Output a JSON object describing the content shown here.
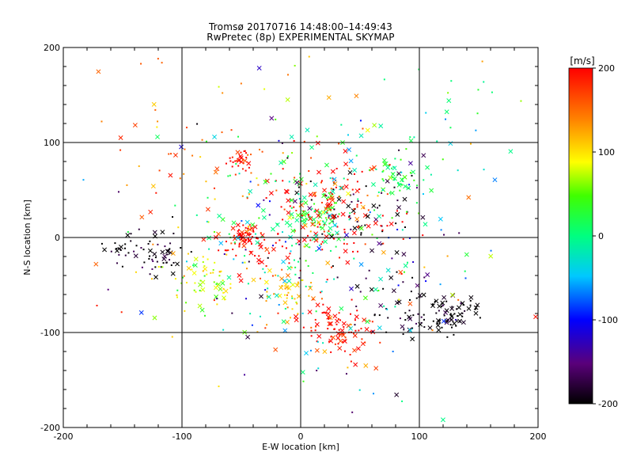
{
  "chart_data": {
    "type": "scatter",
    "title": "Tromsø 20170716 14:48:00–14:49:43",
    "subtitle": "RwPretec (8p) EXPERIMENTAL SKYMAP",
    "xlabel": "E-W location [km]",
    "ylabel": "N-S location [km]",
    "xlim": [
      -200,
      200
    ],
    "ylim": [
      -200,
      200
    ],
    "x_ticks": [
      -200,
      -100,
      0,
      100,
      200
    ],
    "y_ticks": [
      -200,
      -100,
      0,
      100,
      200
    ],
    "grid": true,
    "markers": [
      "x",
      "dot"
    ],
    "colorbar": {
      "label": "[m/s]",
      "range": [
        -200,
        200
      ],
      "ticks": [
        -200,
        -100,
        0,
        100,
        200
      ],
      "colormap": "black-purple-blue-cyan-green-yellow-red"
    },
    "clusters": [
      {
        "x": 125,
        "y": -82,
        "spread": 11,
        "count": 70,
        "velocity": -200
      },
      {
        "x": -48,
        "y": 3,
        "spread": 5,
        "count": 40,
        "velocity": 200
      },
      {
        "x": -50,
        "y": 82,
        "spread": 6,
        "count": 30,
        "velocity": 200
      },
      {
        "x": 40,
        "y": -105,
        "spread": 12,
        "count": 50,
        "velocity": 200
      },
      {
        "x": 80,
        "y": 65,
        "spread": 9,
        "count": 40,
        "velocity": 20
      },
      {
        "x": 15,
        "y": 25,
        "spread": 12,
        "count": 60,
        "velocity": 30
      },
      {
        "x": 20,
        "y": 50,
        "spread": 25,
        "count": 70,
        "velocity": 200
      },
      {
        "x": -120,
        "y": -20,
        "spread": 12,
        "count": 50,
        "velocity": -200
      },
      {
        "x": -155,
        "y": -10,
        "spread": 8,
        "count": 20,
        "velocity": -200
      },
      {
        "x": -80,
        "y": -45,
        "spread": 15,
        "count": 60,
        "velocity": 80
      },
      {
        "x": -10,
        "y": -55,
        "spread": 12,
        "count": 40,
        "velocity": 120
      },
      {
        "x": 20,
        "y": -85,
        "spread": 12,
        "count": 40,
        "velocity": 200
      },
      {
        "x": 80,
        "y": -70,
        "spread": 20,
        "count": 50,
        "velocity": -200
      },
      {
        "x": -40,
        "y": -10,
        "spread": 15,
        "count": 50,
        "velocity": 200
      },
      {
        "x": 50,
        "y": 30,
        "spread": 25,
        "count": 60,
        "velocity": -200
      },
      {
        "x": 20,
        "y": 15,
        "spread": 30,
        "count": 80,
        "velocity": 200
      },
      {
        "x": 0,
        "y": 0,
        "spread": 40,
        "count": 120,
        "velocity": 0
      },
      {
        "x": 0,
        "y": 0,
        "spread": 90,
        "count": 260,
        "velocity": 0
      },
      {
        "x": -100,
        "y": 100,
        "spread": 40,
        "count": 40,
        "velocity": 150
      },
      {
        "x": 100,
        "y": 100,
        "spread": 45,
        "count": 30,
        "velocity": 0
      }
    ]
  }
}
